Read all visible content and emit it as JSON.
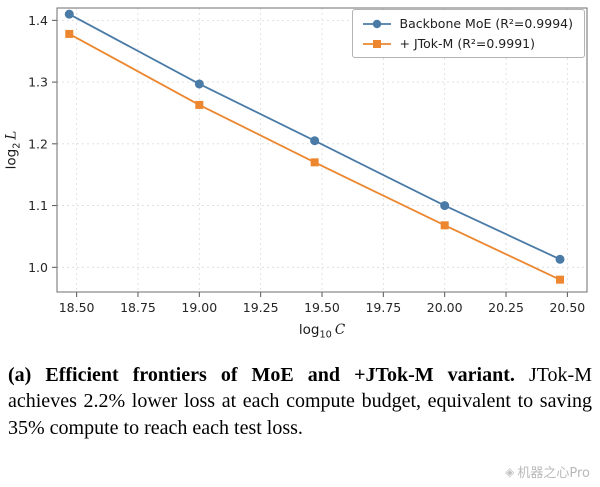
{
  "chart_data": {
    "type": "line",
    "title": "",
    "xlabel": "log10 C",
    "ylabel": "log2 L",
    "xlim": [
      18.42,
      20.58
    ],
    "ylim": [
      0.96,
      1.42
    ],
    "x_ticks": [
      18.5,
      18.75,
      19.0,
      19.25,
      19.5,
      19.75,
      20.0,
      20.25,
      20.5
    ],
    "y_ticks": [
      1.0,
      1.1,
      1.2,
      1.3,
      1.4
    ],
    "grid": true,
    "legend_position": "upper right",
    "series": [
      {
        "name": "Backbone MoE (R²=0.9994)",
        "color": "#4a7ba7",
        "marker": "circle",
        "x": [
          18.47,
          19.0,
          19.47,
          20.0,
          20.47
        ],
        "y": [
          1.41,
          1.297,
          1.205,
          1.1,
          1.013
        ]
      },
      {
        "name": "+ JTok-M (R²=0.9991)",
        "color": "#ec872f",
        "marker": "square",
        "x": [
          18.47,
          19.0,
          19.47,
          20.0,
          20.47
        ],
        "y": [
          1.378,
          1.263,
          1.17,
          1.068,
          0.98
        ]
      }
    ]
  },
  "axes": {
    "x_fn": "log",
    "x_sub": "10",
    "x_var": "C",
    "y_fn": "log",
    "y_sub": "2",
    "y_var": "L"
  },
  "caption": {
    "bold": "(a) Efficient frontiers of MoE and +JTok-M variant.",
    "body": "JTok-M achieves 2.2% lower loss at each compute budget, equivalent to saving 35% compute to reach each test loss."
  },
  "watermark": {
    "text": "机器之心Pro"
  }
}
